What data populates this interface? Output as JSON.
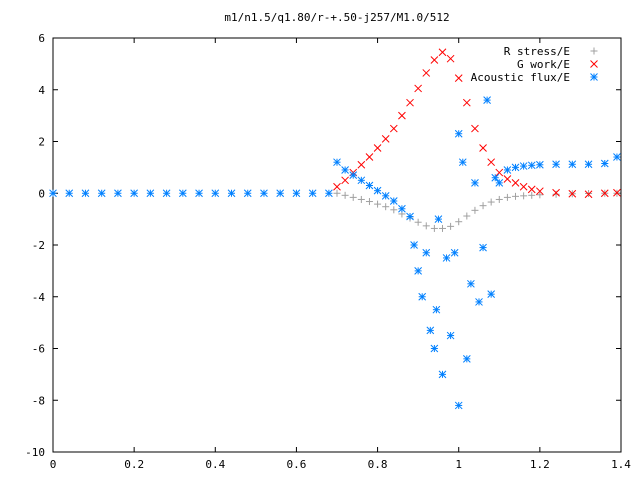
{
  "chart_data": {
    "type": "scatter",
    "title": "m1/n1.5/q1.80/r-+.50-j257/M1.0/512",
    "xlabel": "",
    "ylabel": "",
    "xlim": [
      0,
      1.4
    ],
    "ylim": [
      -10,
      6
    ],
    "x_ticks": [
      "0",
      "0.2",
      "0.4",
      "0.6",
      "0.8",
      "1",
      "1.2",
      "1.4"
    ],
    "y_ticks": [
      "6",
      "4",
      "2",
      "0",
      "-2",
      "-4",
      "-6",
      "-8",
      "-10"
    ],
    "grid": false,
    "legend_position": "top-right",
    "series": [
      {
        "name": "R stress/E",
        "marker": "plus",
        "color": "#a0a0a0",
        "points": [
          [
            0.7,
            0.0
          ],
          [
            0.72,
            -0.08
          ],
          [
            0.74,
            -0.16
          ],
          [
            0.76,
            -0.24
          ],
          [
            0.78,
            -0.32
          ],
          [
            0.8,
            -0.42
          ],
          [
            0.82,
            -0.52
          ],
          [
            0.84,
            -0.64
          ],
          [
            0.86,
            -0.8
          ],
          [
            0.88,
            -0.96
          ],
          [
            0.9,
            -1.12
          ],
          [
            0.92,
            -1.26
          ],
          [
            0.94,
            -1.36
          ],
          [
            0.96,
            -1.36
          ],
          [
            0.98,
            -1.28
          ],
          [
            1.0,
            -1.1
          ],
          [
            1.02,
            -0.88
          ],
          [
            1.04,
            -0.66
          ],
          [
            1.06,
            -0.48
          ],
          [
            1.08,
            -0.34
          ],
          [
            1.1,
            -0.24
          ],
          [
            1.12,
            -0.16
          ],
          [
            1.14,
            -0.12
          ],
          [
            1.16,
            -0.1
          ],
          [
            1.18,
            -0.08
          ],
          [
            1.2,
            -0.06
          ],
          [
            1.24,
            -0.04
          ],
          [
            1.28,
            -0.02
          ],
          [
            1.32,
            -0.01
          ],
          [
            1.36,
            0.0
          ],
          [
            1.39,
            0.0
          ]
        ]
      },
      {
        "name": "G work/E",
        "marker": "cross",
        "color": "#ff0000",
        "points": [
          [
            0.7,
            0.25
          ],
          [
            0.72,
            0.5
          ],
          [
            0.74,
            0.8
          ],
          [
            0.76,
            1.1
          ],
          [
            0.78,
            1.4
          ],
          [
            0.8,
            1.75
          ],
          [
            0.82,
            2.1
          ],
          [
            0.84,
            2.5
          ],
          [
            0.86,
            3.0
          ],
          [
            0.88,
            3.5
          ],
          [
            0.9,
            4.05
          ],
          [
            0.92,
            4.65
          ],
          [
            0.94,
            5.15
          ],
          [
            0.96,
            5.45
          ],
          [
            0.98,
            5.2
          ],
          [
            1.0,
            4.45
          ],
          [
            1.02,
            3.5
          ],
          [
            1.04,
            2.5
          ],
          [
            1.06,
            1.75
          ],
          [
            1.08,
            1.2
          ],
          [
            1.1,
            0.8
          ],
          [
            1.12,
            0.55
          ],
          [
            1.14,
            0.4
          ],
          [
            1.16,
            0.25
          ],
          [
            1.18,
            0.15
          ],
          [
            1.2,
            0.08
          ],
          [
            1.24,
            0.02
          ],
          [
            1.28,
            -0.02
          ],
          [
            1.32,
            -0.04
          ],
          [
            1.36,
            0.0
          ],
          [
            1.39,
            0.02
          ]
        ]
      },
      {
        "name": "Acoustic flux/E",
        "marker": "star",
        "color": "#0080ff",
        "points": [
          [
            0.0,
            0.0
          ],
          [
            0.04,
            0.0
          ],
          [
            0.08,
            0.0
          ],
          [
            0.12,
            0.0
          ],
          [
            0.16,
            0.0
          ],
          [
            0.2,
            0.0
          ],
          [
            0.24,
            0.0
          ],
          [
            0.28,
            0.0
          ],
          [
            0.32,
            0.0
          ],
          [
            0.36,
            0.0
          ],
          [
            0.4,
            0.0
          ],
          [
            0.44,
            0.0
          ],
          [
            0.48,
            0.0
          ],
          [
            0.52,
            0.0
          ],
          [
            0.56,
            0.0
          ],
          [
            0.6,
            0.0
          ],
          [
            0.64,
            0.0
          ],
          [
            0.68,
            0.0
          ],
          [
            0.7,
            1.2
          ],
          [
            0.72,
            0.9
          ],
          [
            0.74,
            0.7
          ],
          [
            0.76,
            0.5
          ],
          [
            0.78,
            0.3
          ],
          [
            0.8,
            0.1
          ],
          [
            0.82,
            -0.1
          ],
          [
            0.84,
            -0.3
          ],
          [
            0.86,
            -0.6
          ],
          [
            0.88,
            -0.9
          ],
          [
            0.89,
            -2.0
          ],
          [
            0.9,
            -3.0
          ],
          [
            0.91,
            -4.0
          ],
          [
            0.92,
            -2.3
          ],
          [
            0.93,
            -5.3
          ],
          [
            0.94,
            -6.0
          ],
          [
            0.945,
            -4.5
          ],
          [
            0.95,
            -1.0
          ],
          [
            0.96,
            -7.0
          ],
          [
            0.97,
            -2.5
          ],
          [
            0.98,
            -5.5
          ],
          [
            0.99,
            -2.3
          ],
          [
            1.0,
            -8.2
          ],
          [
            1.0,
            2.3
          ],
          [
            1.01,
            1.2
          ],
          [
            1.02,
            -6.4
          ],
          [
            1.03,
            -3.5
          ],
          [
            1.04,
            0.4
          ],
          [
            1.05,
            -4.2
          ],
          [
            1.06,
            -2.1
          ],
          [
            1.07,
            3.6
          ],
          [
            1.08,
            -3.9
          ],
          [
            1.09,
            0.6
          ],
          [
            1.1,
            0.4
          ],
          [
            1.12,
            0.9
          ],
          [
            1.14,
            1.0
          ],
          [
            1.16,
            1.05
          ],
          [
            1.18,
            1.08
          ],
          [
            1.2,
            1.1
          ],
          [
            1.24,
            1.12
          ],
          [
            1.28,
            1.12
          ],
          [
            1.32,
            1.12
          ],
          [
            1.36,
            1.15
          ],
          [
            1.39,
            1.4
          ]
        ]
      }
    ]
  }
}
